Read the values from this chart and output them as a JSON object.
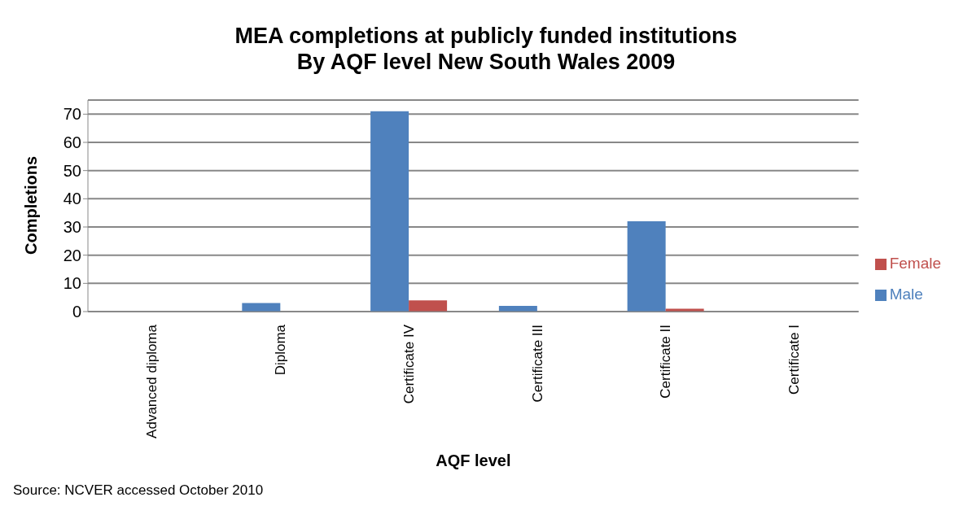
{
  "chart_data": {
    "type": "bar",
    "title": "MEA completions at publicly funded institutions\nBy AQF level New South Wales 2009",
    "xlabel": "AQF level",
    "ylabel": "Completions",
    "categories": [
      "Advanced diploma",
      "Diploma",
      "Certificate IV",
      "Certificate III",
      "Certificate II",
      "Certificate I"
    ],
    "series": [
      {
        "name": "Male",
        "color": "#4f81bd",
        "values": [
          0,
          3,
          71,
          2,
          32,
          0
        ]
      },
      {
        "name": "Female",
        "color": "#c0504d",
        "values": [
          0,
          0,
          4,
          0,
          1,
          0
        ]
      }
    ],
    "ylim": [
      0,
      75
    ],
    "yticks": [
      0,
      10,
      20,
      30,
      40,
      50,
      60,
      70
    ],
    "grid": "y",
    "legend": "right",
    "annotations": [
      "Source: NCVER accessed October 2010"
    ]
  }
}
